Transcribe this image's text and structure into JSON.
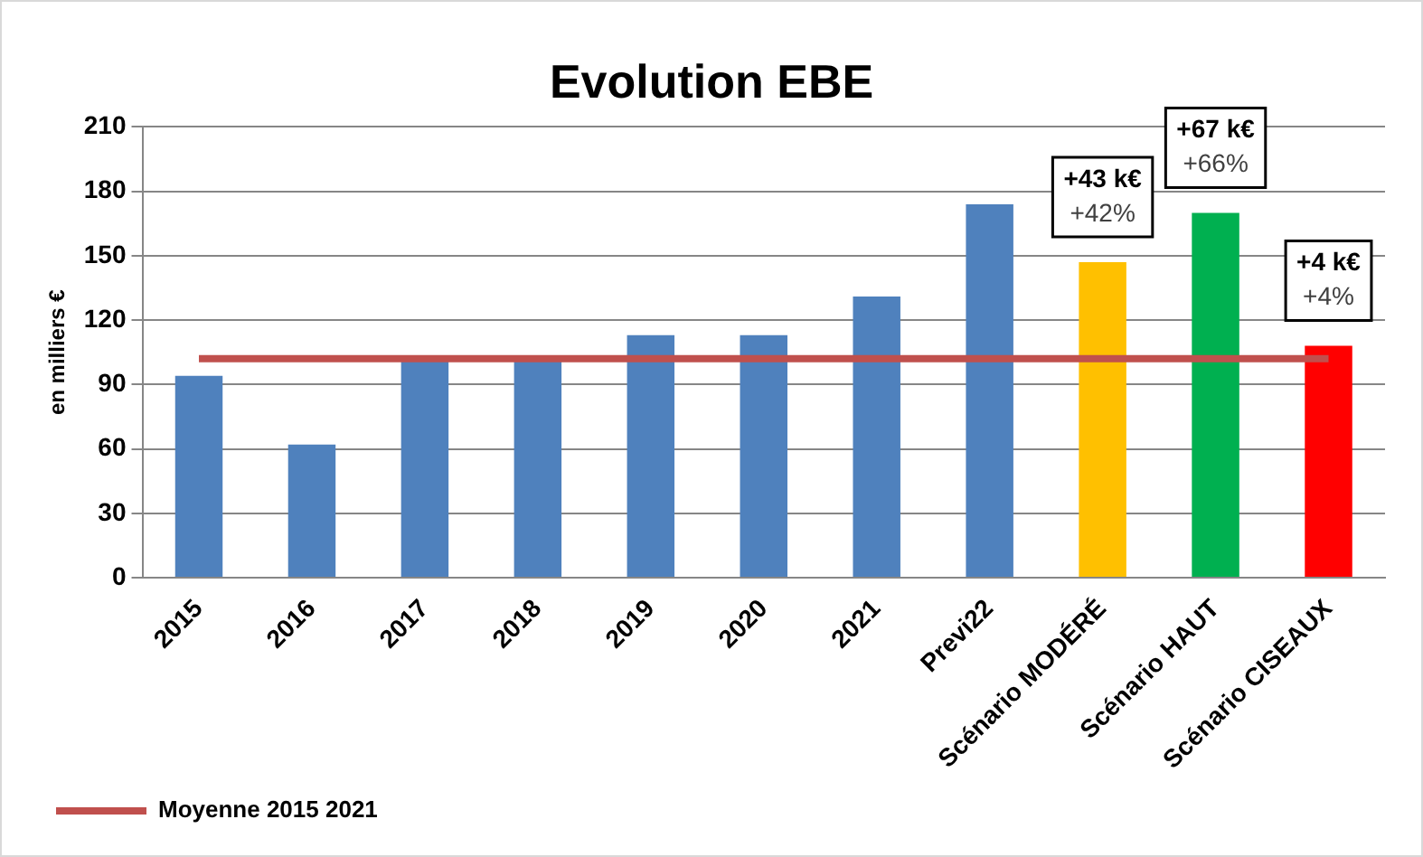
{
  "chart_data": {
    "type": "bar",
    "title": "Evolution EBE",
    "ylabel": "en milliers €",
    "categories": [
      "2015",
      "2016",
      "2017",
      "2018",
      "2019",
      "2020",
      "2021",
      "Previ22",
      "Scénario MODÉRÉ",
      "Scénario HAUT",
      "Scénario CISEAUX"
    ],
    "series": [
      {
        "values": [
          94,
          62,
          102,
          102,
          113,
          113,
          131,
          174,
          147,
          170,
          108
        ],
        "colors": [
          "#4f81bd",
          "#4f81bd",
          "#4f81bd",
          "#4f81bd",
          "#4f81bd",
          "#4f81bd",
          "#4f81bd",
          "#4f81bd",
          "#ffc000",
          "#00b050",
          "#ff0000"
        ]
      },
      {
        "type": "line",
        "name": "Moyenne 2015 2021",
        "color": "#c0504d",
        "values": [
          102,
          102,
          102,
          102,
          102,
          102,
          102,
          102,
          102,
          102,
          102
        ],
        "marker": "none"
      }
    ],
    "annotations": [
      {
        "text": "+43 k€\n+42%",
        "x": "Scénario MODÉRÉ",
        "y": 147
      },
      {
        "text": "+67 k€\n+66%",
        "x": "Scénario HAUT",
        "y": 170
      },
      {
        "text": "+4 k€\n+4%",
        "x": "Scénario CISEAUX",
        "y": 108
      }
    ],
    "ylim": [
      0,
      210
    ],
    "yticks": [
      0,
      30,
      60,
      90,
      120,
      150,
      180,
      210
    ],
    "grid": "y",
    "legend": "bottom left"
  }
}
